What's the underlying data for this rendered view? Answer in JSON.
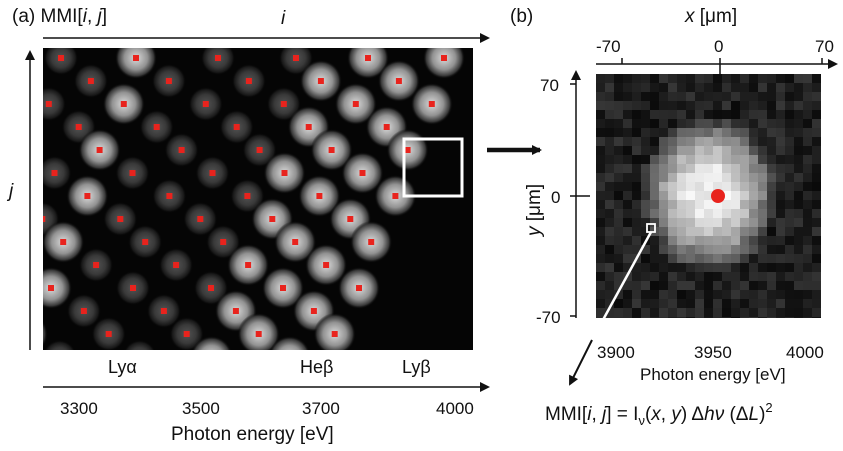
{
  "panel_a": {
    "label_prefix": "(a) MMI[",
    "label_i": "i",
    "label_sep": ", ",
    "label_j": "j",
    "label_suffix": "]",
    "axis_i": "i",
    "axis_j": "j",
    "lines": [
      "Lyα",
      "Heβ",
      "Lyβ"
    ],
    "energy_ticks": [
      "3300",
      "3500",
      "3700",
      "4000"
    ],
    "energy_label": "Photon energy [eV]"
  },
  "panel_b": {
    "label": "(b)",
    "x_label_var": "x",
    "x_label_unit": " [μm]",
    "x_ticks": [
      "-70",
      "0",
      "70"
    ],
    "y_label_var": "y",
    "y_label_unit": " [μm]",
    "y_ticks": [
      "70",
      "0",
      "-70"
    ],
    "energy_ticks": [
      "3900",
      "3950",
      "4000"
    ],
    "energy_label": "Photon energy [eV]"
  },
  "equation": {
    "p1": "MMI[",
    "i": "i",
    "p2": ", ",
    "j": "j",
    "p3": "] = I",
    "nu_sub": "ν",
    "p4": "(",
    "x": "x",
    "p5": ", ",
    "y": "y",
    "p6": ") Δ",
    "h": "h",
    "nu": "ν",
    "p7": " (Δ",
    "L": "L",
    "p8": ")",
    "sq": "2"
  },
  "colors": {
    "marker": "#e8231d",
    "image_bg": "#050505",
    "highlight_box": "#ffffff"
  }
}
